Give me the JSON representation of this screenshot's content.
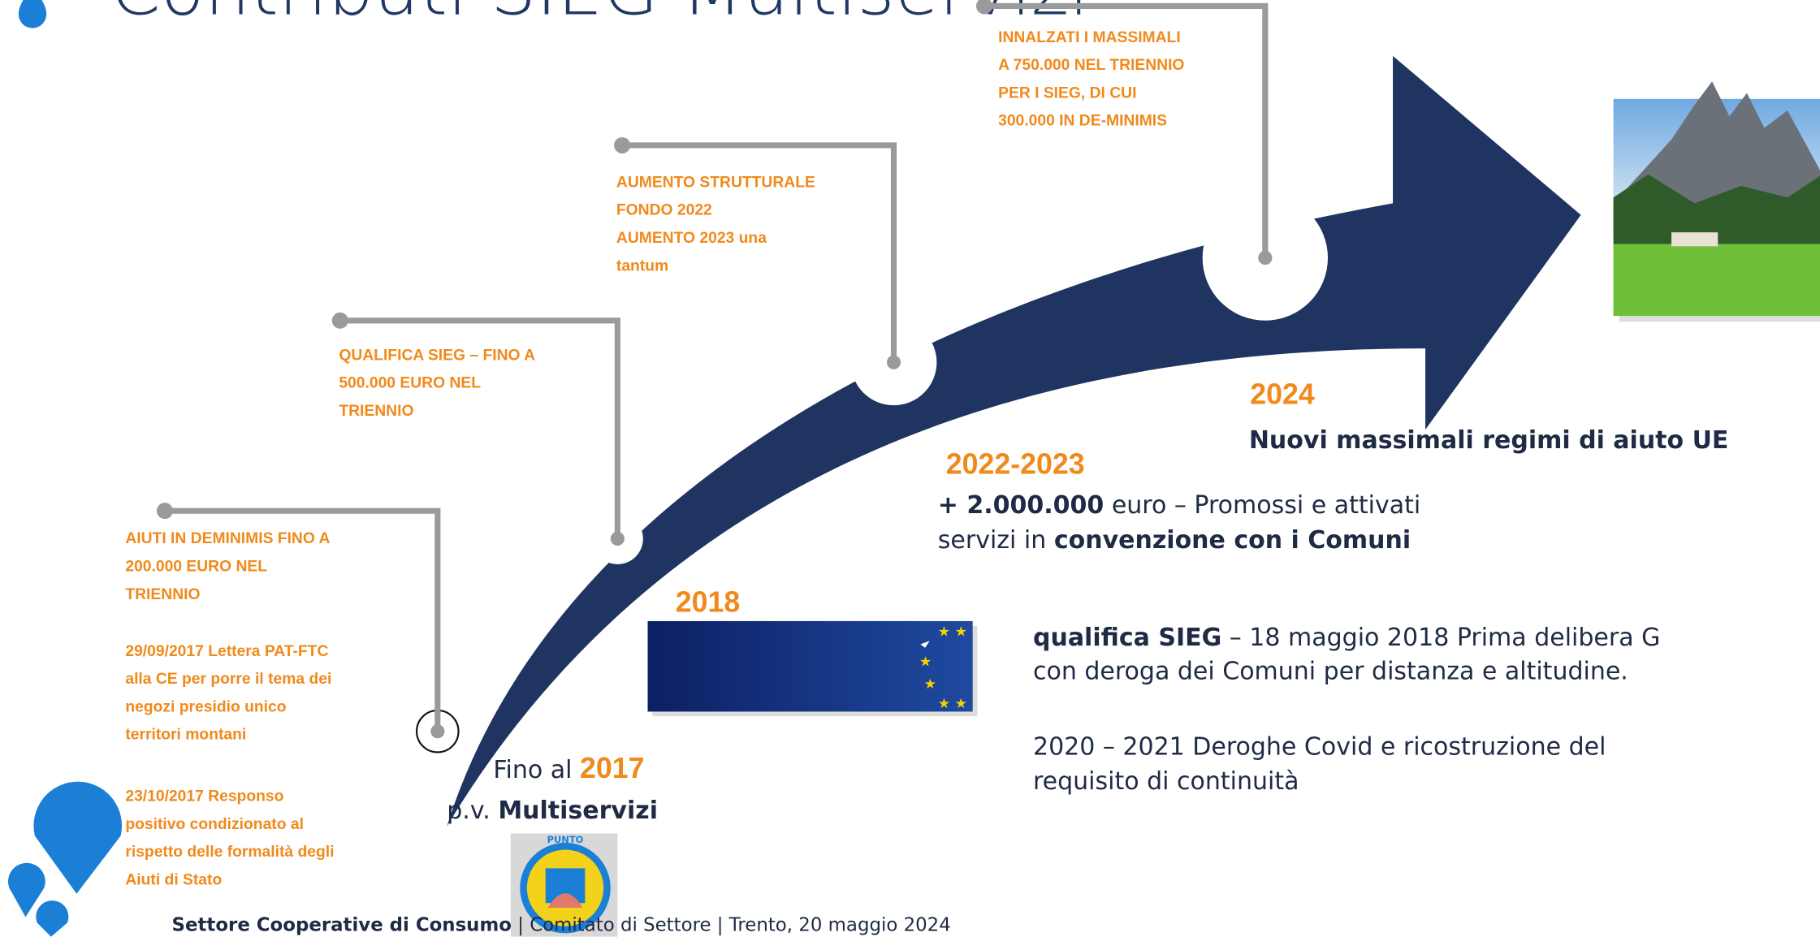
{
  "header": {
    "title": "Contributi SIEG Multiservizi"
  },
  "callouts": [
    {
      "lines": [
        "AIUTI IN DEMINIMIS FINO A",
        "200.000 EURO NEL",
        "TRIENNIO"
      ],
      "notes": [
        [
          "29/09/2017 Lettera PAT-FTC",
          "alla CE per porre il tema dei",
          "negozi presidio unico",
          "territori montani"
        ],
        [
          "23/10/2017 Responso",
          "positivo condizionato al",
          "rispetto delle formalità degli",
          "Aiuti di Stato"
        ]
      ]
    },
    {
      "lines": [
        "QUALIFICA SIEG – FINO A",
        "500.000 EURO NEL",
        "TRIENNIO"
      ]
    },
    {
      "lines": [
        "AUMENTO STRUTTURALE",
        "FONDO 2022",
        "AUMENTO 2023 una",
        "tantum"
      ]
    },
    {
      "lines": [
        "INNALZATI I MASSIMALI",
        "A 750.000 NEL TRIENNIO",
        "PER I SIEG, DI CUI",
        "300.000 IN DE-MINIMIS"
      ]
    }
  ],
  "milestones": {
    "m2017": {
      "prefix": "Fino al ",
      "year": "2017",
      "line2_prefix": "p.v. ",
      "line2_bold": "Multiservizi"
    },
    "m2018": {
      "year": "2018",
      "bold": "qualifica SIEG",
      "text": " –  18 maggio 2018 Prima delibera G",
      "line2": "con deroga dei Comuni per distanza e altitudine.",
      "line3": "2020 – 2021 Deroghe Covid e ricostruzione del",
      "line4": "requisito di continuità"
    },
    "m2022": {
      "year": "2022-2023",
      "bold1": "+ 2.000.000",
      "text1": " euro – Promossi e attivati",
      "text2": "servizi in ",
      "bold2": "convenzione con i Comuni"
    },
    "m2024": {
      "year": "2024",
      "text": "Nuovi massimali regimi di aiuto UE"
    }
  },
  "logo": {
    "text": "PUNTO"
  },
  "footer": {
    "org": "Settore Cooperative di Consumo",
    "rest": " | Comitato di Settore | Trento, 20 maggio 2024"
  }
}
